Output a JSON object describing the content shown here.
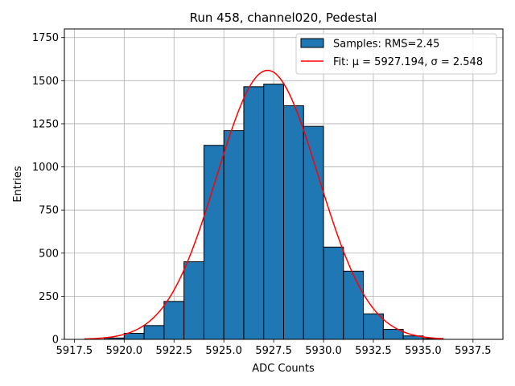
{
  "chart_data": {
    "type": "bar",
    "title": "Run 458, channel020, Pedestal",
    "xlabel": "ADC Counts",
    "ylabel": "Entries",
    "xlim": [
      5917.0,
      5939.0
    ],
    "ylim": [
      0,
      1800
    ],
    "xticks": [
      5917.5,
      5920.0,
      5922.5,
      5925.0,
      5927.5,
      5930.0,
      5932.5,
      5935.0,
      5937.5
    ],
    "xtick_labels": [
      "5917.5",
      "5920.0",
      "5922.5",
      "5925.0",
      "5927.5",
      "5930.0",
      "5932.5",
      "5935.0",
      "5937.5"
    ],
    "yticks": [
      0,
      250,
      500,
      750,
      1000,
      1250,
      1500,
      1750
    ],
    "ytick_labels": [
      "0",
      "250",
      "500",
      "750",
      "1000",
      "1250",
      "1500",
      "1750"
    ],
    "grid": true,
    "legend_position": "top-right",
    "bins": [
      {
        "left": 5919,
        "right": 5920,
        "count": 8
      },
      {
        "left": 5920,
        "right": 5921,
        "count": 35
      },
      {
        "left": 5921,
        "right": 5922,
        "count": 80
      },
      {
        "left": 5922,
        "right": 5923,
        "count": 220
      },
      {
        "left": 5923,
        "right": 5924,
        "count": 450
      },
      {
        "left": 5924,
        "right": 5925,
        "count": 1125
      },
      {
        "left": 5925,
        "right": 5926,
        "count": 1210
      },
      {
        "left": 5926,
        "right": 5927,
        "count": 1465
      },
      {
        "left": 5927,
        "right": 5928,
        "count": 1480
      },
      {
        "left": 5928,
        "right": 5929,
        "count": 1355
      },
      {
        "left": 5929,
        "right": 5930,
        "count": 1235
      },
      {
        "left": 5930,
        "right": 5931,
        "count": 535
      },
      {
        "left": 5931,
        "right": 5932,
        "count": 395
      },
      {
        "left": 5932,
        "right": 5933,
        "count": 148
      },
      {
        "left": 5933,
        "right": 5934,
        "count": 58
      },
      {
        "left": 5934,
        "right": 5935,
        "count": 20
      },
      {
        "left": 5935,
        "right": 5936,
        "count": 5
      }
    ],
    "fit": {
      "mu": 5927.194,
      "sigma": 2.548,
      "amplitude": 1560,
      "x_range": [
        5918,
        5936
      ]
    },
    "series": [
      {
        "name": "Samples: RMS=2.45",
        "color": "#1f77b4"
      },
      {
        "name": "Fit: μ = 5927.194, σ = 2.548",
        "color": "#ff0000"
      }
    ]
  }
}
